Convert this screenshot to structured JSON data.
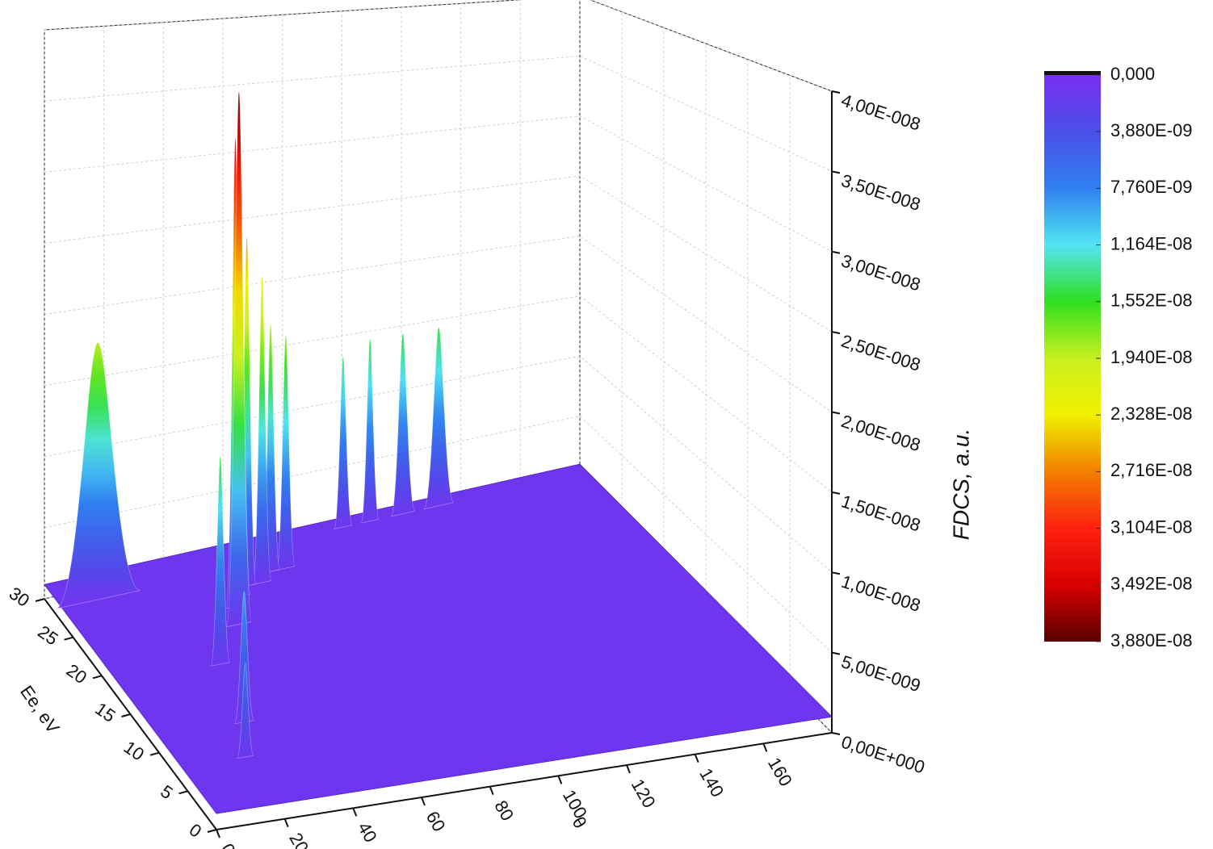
{
  "chart_data": {
    "type": "surface",
    "x_label": "θ",
    "y_label": "Ee, eV",
    "z_label": "FDCS, a.u.",
    "xlim": [
      0,
      180
    ],
    "xticks": [
      0,
      20,
      40,
      60,
      80,
      100,
      120,
      140,
      160
    ],
    "ylim": [
      0,
      30
    ],
    "yticks": [
      0,
      5,
      10,
      15,
      20,
      25,
      30
    ],
    "zlim": [
      0,
      4e-08
    ],
    "zticks": [
      {
        "value": 0,
        "label": "0,00E+000"
      },
      {
        "value": 5e-09,
        "label": "5,00E-009"
      },
      {
        "value": 1e-08,
        "label": "1,00E-008"
      },
      {
        "value": 1.5e-08,
        "label": "1,50E-008"
      },
      {
        "value": 2e-08,
        "label": "2,00E-008"
      },
      {
        "value": 2.5e-08,
        "label": "2,50E-008"
      },
      {
        "value": 3e-08,
        "label": "3,00E-008"
      },
      {
        "value": 3.5e-08,
        "label": "3,50E-008"
      },
      {
        "value": 4e-08,
        "label": "4,00E-008"
      }
    ],
    "grid": true,
    "colorbar": {
      "clim": [
        0,
        3.88e-08
      ],
      "colors": [
        "#7a2ef2",
        "#4a4fe8",
        "#2f80f0",
        "#52e4f2",
        "#2fe020",
        "#c8f020",
        "#f2f000",
        "#f28000",
        "#ff2010",
        "#d80000",
        "#5a0000"
      ],
      "ticks": [
        {
          "value": 0,
          "label": "0,000"
        },
        {
          "value": 3.88e-09,
          "label": "3,880E-09"
        },
        {
          "value": 7.76e-09,
          "label": "7,760E-09"
        },
        {
          "value": 1.164e-08,
          "label": "1,164E-08"
        },
        {
          "value": 1.552e-08,
          "label": "1,552E-08"
        },
        {
          "value": 1.94e-08,
          "label": "1,940E-08"
        },
        {
          "value": 2.328e-08,
          "label": "2,328E-08"
        },
        {
          "value": 2.716e-08,
          "label": "2,716E-08"
        },
        {
          "value": 3.104e-08,
          "label": "3,104E-08"
        },
        {
          "value": 3.492e-08,
          "label": "3,492E-08"
        },
        {
          "value": 3.88e-08,
          "label": "3,880E-08"
        }
      ]
    },
    "floor_value": 1e-09,
    "peaks": [
      {
        "theta": 130,
        "energy": 29,
        "fdcs": 1.5e-08,
        "width": 5
      },
      {
        "theta": 118,
        "energy": 29,
        "fdcs": 1.5e-08,
        "width": 4
      },
      {
        "theta": 107,
        "energy": 29,
        "fdcs": 1.5e-08,
        "width": 3
      },
      {
        "theta": 98,
        "energy": 29,
        "fdcs": 1.4e-08,
        "width": 3
      },
      {
        "theta": 12,
        "energy": 27,
        "fdcs": 1.9e-08,
        "width": 14
      },
      {
        "theta": 72,
        "energy": 26,
        "fdcs": 1.8e-08,
        "width": 3
      },
      {
        "theta": 67,
        "energy": 26,
        "fdcs": 1.9e-08,
        "width": 3
      },
      {
        "theta": 62,
        "energy": 25,
        "fdcs": 2.3e-08,
        "width": 3
      },
      {
        "theta": 57,
        "energy": 25,
        "fdcs": 2.6e-08,
        "width": 3
      },
      {
        "theta": 53,
        "energy": 24,
        "fdcs": 2.6e-08,
        "width": 3
      },
      {
        "theta": 49,
        "energy": 23,
        "fdcs": 3.4e-08,
        "width": 3
      },
      {
        "theta": 46,
        "energy": 21,
        "fdcs": 3.8e-08,
        "width": 4
      },
      {
        "theta": 32,
        "energy": 17,
        "fdcs": 1.5e-08,
        "width": 3
      },
      {
        "theta": 26,
        "energy": 10,
        "fdcs": 9.5e-09,
        "width": 3
      },
      {
        "theta": 19,
        "energy": 6,
        "fdcs": 7e-09,
        "width": 2.5
      }
    ]
  }
}
